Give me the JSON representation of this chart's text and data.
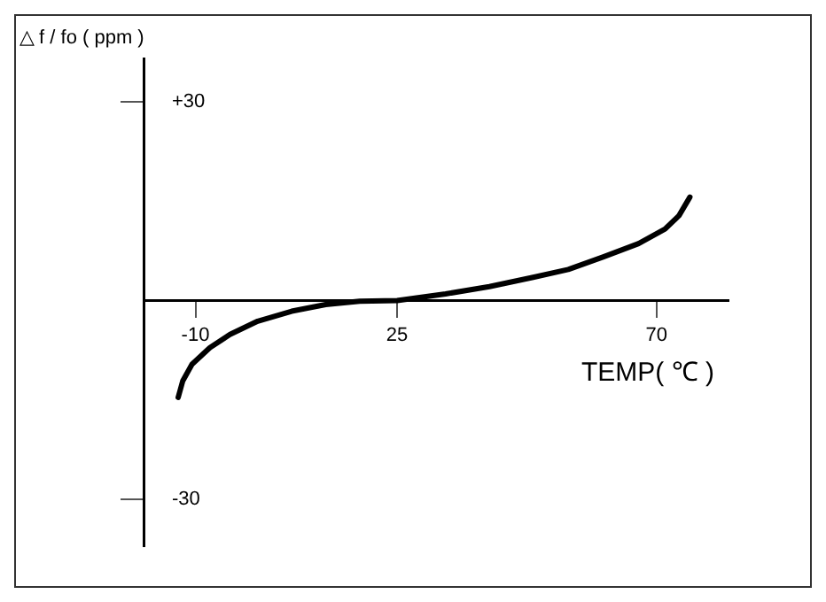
{
  "chart_data": {
    "type": "line",
    "ylabel": "△ f / fo ( ppm )",
    "xlabel": "TEMP( ℃ )",
    "x": [
      -13,
      -12.2,
      -10.6,
      -7.5,
      -4,
      0.8,
      6.7,
      12.6,
      18.5,
      25,
      33.4,
      41,
      48.6,
      54.7,
      60.8,
      66.9,
      71.5,
      73.9,
      75.8
    ],
    "values": [
      -14.6,
      -12.1,
      -9.6,
      -7.1,
      -5.1,
      -3.1,
      -1.6,
      -0.6,
      -0.1,
      0,
      1,
      2.1,
      3.5,
      4.7,
      6.6,
      8.6,
      10.8,
      12.8,
      15.6
    ],
    "color": "#000000",
    "xlim": [
      -19,
      82.5
    ],
    "ylim": [
      -37,
      36.5
    ],
    "xticks": [
      -10,
      25,
      70
    ],
    "yticks": [
      {
        "value": 30,
        "label": "+30"
      },
      -30
    ],
    "marker": "none",
    "line_style": "solid"
  }
}
